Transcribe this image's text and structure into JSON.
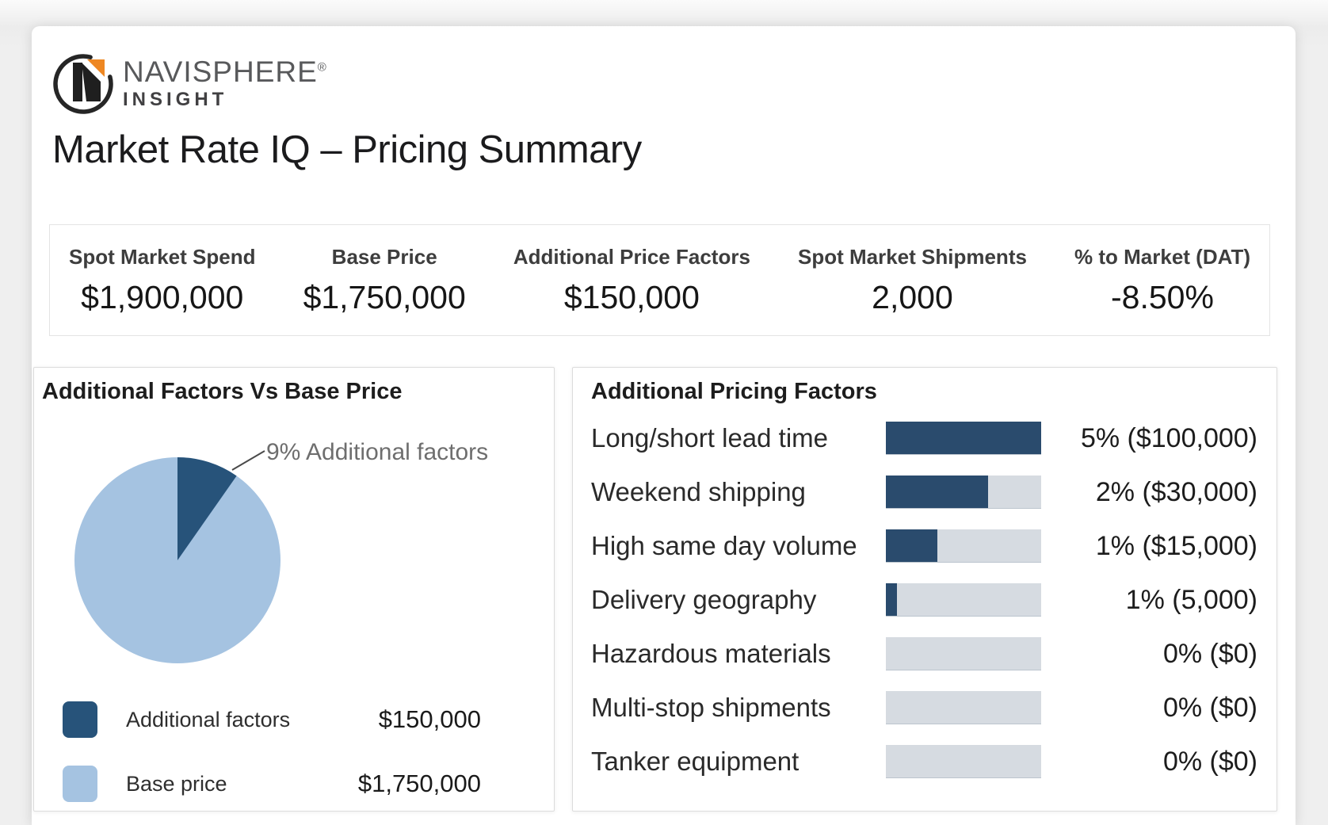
{
  "logo": {
    "brand": "NAVISPHERE",
    "registered": "®",
    "sub": "INSIGHT"
  },
  "page_title": "Market Rate IQ – Pricing Summary",
  "kpis": [
    {
      "label": "Spot Market Spend",
      "value": "$1,900,000"
    },
    {
      "label": "Base Price",
      "value": "$1,750,000"
    },
    {
      "label": "Additional Price Factors",
      "value": "$150,000"
    },
    {
      "label": "Spot Market Shipments",
      "value": "2,000"
    },
    {
      "label": "% to Market (DAT)",
      "value": "-8.50%"
    }
  ],
  "pie_card": {
    "title": "Additional Factors Vs Base Price",
    "annotation": "9% Additional factors",
    "legend": [
      {
        "label": "Additional factors",
        "value": "$150,000",
        "color": "#27537a"
      },
      {
        "label": "Base price",
        "value": "$1,750,000",
        "color": "#a5c3e1"
      }
    ]
  },
  "bars_card": {
    "title": "Additional Pricing Factors",
    "rows": [
      {
        "label": "Long/short lead time",
        "value": "5% ($100,000)",
        "fill": 100
      },
      {
        "label": "Weekend shipping",
        "value": "2% ($30,000)",
        "fill": 66
      },
      {
        "label": "High same day volume",
        "value": "1% ($15,000)",
        "fill": 33
      },
      {
        "label": "Delivery geography",
        "value": "1% (5,000)",
        "fill": 7
      },
      {
        "label": "Hazardous materials",
        "value": "0% ($0)",
        "fill": 0
      },
      {
        "label": "Multi-stop shipments",
        "value": "0% ($0)",
        "fill": 0
      },
      {
        "label": "Tanker equipment",
        "value": "0% ($0)",
        "fill": 0
      }
    ]
  },
  "chart_data": [
    {
      "type": "pie",
      "title": "Additional Factors Vs Base Price",
      "slices": [
        {
          "label": "Additional factors",
          "value": 150000,
          "percent": 9,
          "color": "#27537a"
        },
        {
          "label": "Base price",
          "value": 1750000,
          "percent": 91,
          "color": "#a5c3e1"
        }
      ],
      "annotation": "9% Additional factors",
      "legend_position": "bottom-left"
    },
    {
      "type": "bar",
      "title": "Additional Pricing Factors",
      "orientation": "horizontal",
      "categories": [
        "Long/short lead time",
        "Weekend shipping",
        "High same day volume",
        "Delivery geography",
        "Hazardous materials",
        "Multi-stop shipments",
        "Tanker equipment"
      ],
      "series": [
        {
          "name": "percent_of_base",
          "values": [
            5,
            2,
            1,
            1,
            0,
            0,
            0
          ]
        },
        {
          "name": "dollars",
          "values": [
            100000,
            30000,
            15000,
            5000,
            0,
            0,
            0
          ]
        }
      ],
      "bar_fill_fraction": [
        1.0,
        0.66,
        0.33,
        0.07,
        0,
        0,
        0
      ],
      "value_labels": [
        "5% ($100,000)",
        "2% ($30,000)",
        "1% ($15,000)",
        "1% (5,000)",
        "0% ($0)",
        "0% ($0)",
        "0% ($0)"
      ],
      "grid": false,
      "legend_position": "none"
    }
  ],
  "colors": {
    "navy_bar": "#2a4b6d",
    "pie_dark": "#27537a",
    "pie_light": "#a5c3e1",
    "bar_track": "#d6dbe1",
    "logo_orange": "#ee8722",
    "annotation_gray": "#6e6e6e"
  }
}
